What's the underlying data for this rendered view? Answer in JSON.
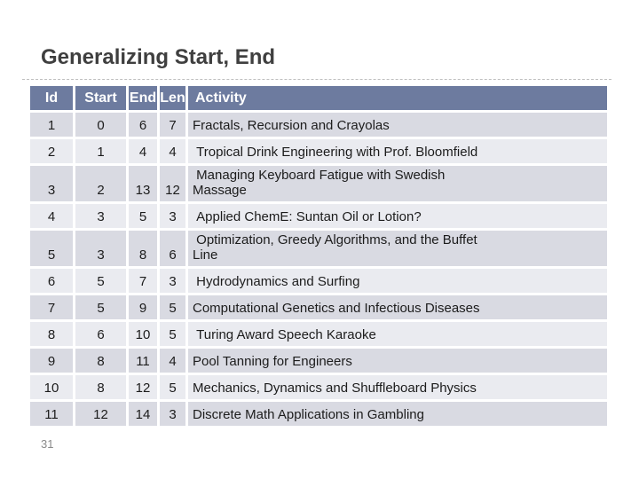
{
  "slide": {
    "title": "Generalizing Start, End",
    "page_number": "31"
  },
  "colors": {
    "header_bg": "#6d7b9f",
    "header_text": "#ffffff",
    "row_dark_bg": "#d9dae2",
    "row_light_bg": "#eaebf0",
    "title_text": "#3f3f3f",
    "divider": "#bfbfbf",
    "cell_text": "#1c1c1c",
    "page_number_text": "#8a8a8a"
  },
  "table": {
    "columns": [
      "Id",
      "Start",
      "End",
      "Len",
      "Activity"
    ],
    "rows": [
      {
        "id": "1",
        "start": "0",
        "end": "6",
        "len": "7",
        "activity": "Fractals, Recursion and Crayolas"
      },
      {
        "id": "2",
        "start": "1",
        "end": "4",
        "len": "4",
        "activity": " Tropical Drink Engineering with Prof. Bloomfield"
      },
      {
        "id": "3",
        "start": "2",
        "end": "13",
        "len": "12",
        "activity": " Managing Keyboard Fatigue with Swedish\nMassage"
      },
      {
        "id": "4",
        "start": "3",
        "end": "5",
        "len": "3",
        "activity": " Applied ChemE: Suntan Oil or Lotion?"
      },
      {
        "id": "5",
        "start": "3",
        "end": "8",
        "len": "6",
        "activity": " Optimization, Greedy Algorithms, and the Buffet\nLine"
      },
      {
        "id": "6",
        "start": "5",
        "end": "7",
        "len": "3",
        "activity": " Hydrodynamics and Surfing"
      },
      {
        "id": "7",
        "start": "5",
        "end": "9",
        "len": "5",
        "activity": "Computational Genetics and Infectious Diseases"
      },
      {
        "id": "8",
        "start": "6",
        "end": "10",
        "len": "5",
        "activity": " Turing Award Speech Karaoke"
      },
      {
        "id": "9",
        "start": "8",
        "end": "11",
        "len": "4",
        "activity": "Pool Tanning for Engineers"
      },
      {
        "id": "10",
        "start": "8",
        "end": "12",
        "len": "5",
        "activity": "Mechanics, Dynamics and Shuffleboard Physics"
      },
      {
        "id": "11",
        "start": "12",
        "end": "14",
        "len": "3",
        "activity": "Discrete Math Applications in Gambling"
      }
    ]
  }
}
